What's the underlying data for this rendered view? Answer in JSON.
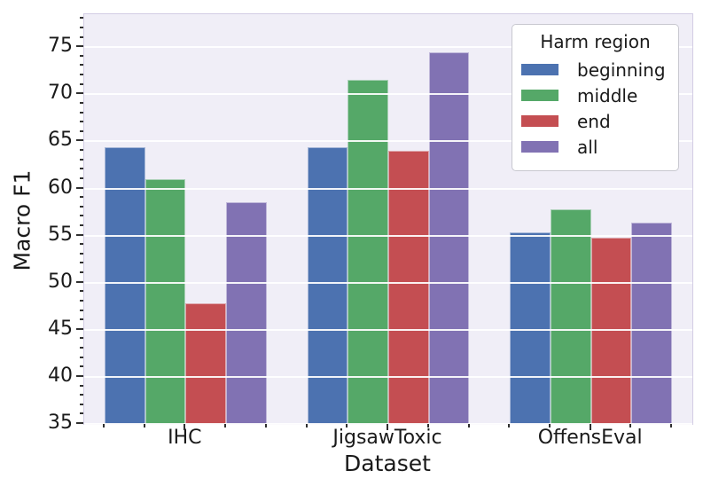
{
  "chart_data": {
    "type": "bar",
    "title": "",
    "xlabel": "Dataset",
    "ylabel": "Macro F1",
    "categories": [
      "IHC",
      "JigsawToxic",
      "OffensEval"
    ],
    "series": [
      {
        "name": "beginning",
        "color": "#4C72B0",
        "values": [
          64.4,
          64.4,
          55.3
        ]
      },
      {
        "name": "middle",
        "color": "#55A868",
        "values": [
          61.0,
          71.5,
          57.8
        ]
      },
      {
        "name": "end",
        "color": "#C44E52",
        "values": [
          47.8,
          64.0,
          54.8
        ]
      },
      {
        "name": "all",
        "color": "#8172B3",
        "values": [
          58.5,
          74.5,
          56.4
        ]
      }
    ],
    "legend": {
      "title": "Harm region",
      "position": "upper right"
    },
    "ylim": [
      35,
      78.5
    ],
    "yticks_major": [
      35,
      40,
      45,
      50,
      55,
      60,
      65,
      70,
      75
    ],
    "ytick_minor_step": 1,
    "grid": true,
    "grid_color": "#ffffff",
    "plot_background": "#f0eef7",
    "bar_group_width_fraction": 0.8
  }
}
